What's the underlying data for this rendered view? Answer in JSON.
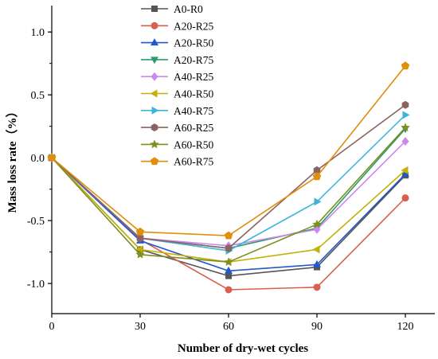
{
  "chart_data": {
    "type": "line",
    "title": "",
    "xlabel": "Number of dry-wet cycles",
    "ylabel": "Mass loss rate（%）",
    "x": [
      0,
      30,
      60,
      90,
      120
    ],
    "xticks": [
      "0",
      "30",
      "60",
      "90",
      "120"
    ],
    "yticks": [
      "-1.0",
      "-0.5",
      "0.0",
      "0.5",
      "1.0"
    ],
    "ytick_values": [
      -1.0,
      -0.5,
      0.0,
      0.5,
      1.0
    ],
    "xlim": [
      0,
      130
    ],
    "ylim": [
      -1.24,
      1.21
    ],
    "grid": false,
    "legend_position": "top-center",
    "series": [
      {
        "name": "A0-R0",
        "color": "#555555",
        "marker": "square",
        "values": [
          0,
          -0.73,
          -0.94,
          -0.87,
          -0.14
        ]
      },
      {
        "name": "A20-R25",
        "color": "#d9604e",
        "marker": "circle",
        "values": [
          0,
          -0.65,
          -1.05,
          -1.03,
          -0.32
        ]
      },
      {
        "name": "A20-R50",
        "color": "#2456cc",
        "marker": "triangle-up",
        "values": [
          0,
          -0.66,
          -0.9,
          -0.85,
          -0.13
        ]
      },
      {
        "name": "A20-R75",
        "color": "#2a9d6c",
        "marker": "triangle-down",
        "values": [
          0,
          -0.64,
          -0.72,
          -0.56,
          0.23
        ]
      },
      {
        "name": "A40-R25",
        "color": "#cc88ee",
        "marker": "diamond",
        "values": [
          0,
          -0.64,
          -0.7,
          -0.57,
          0.13
        ]
      },
      {
        "name": "A40-R50",
        "color": "#c2b208",
        "marker": "triangle-left",
        "values": [
          0,
          -0.73,
          -0.83,
          -0.73,
          -0.1
        ]
      },
      {
        "name": "A40-R75",
        "color": "#3eb4dc",
        "marker": "triangle-right",
        "values": [
          0,
          -0.64,
          -0.74,
          -0.35,
          0.34
        ]
      },
      {
        "name": "A60-R25",
        "color": "#8c6360",
        "marker": "hexagon",
        "values": [
          0,
          -0.64,
          -0.72,
          -0.1,
          0.42
        ]
      },
      {
        "name": "A60-R50",
        "color": "#7f8f1e",
        "marker": "star",
        "values": [
          0,
          -0.77,
          -0.83,
          -0.53,
          0.24
        ]
      },
      {
        "name": "A60-R75",
        "color": "#e08e0b",
        "marker": "pentagon",
        "values": [
          0,
          -0.59,
          -0.62,
          -0.15,
          0.73
        ]
      }
    ]
  }
}
